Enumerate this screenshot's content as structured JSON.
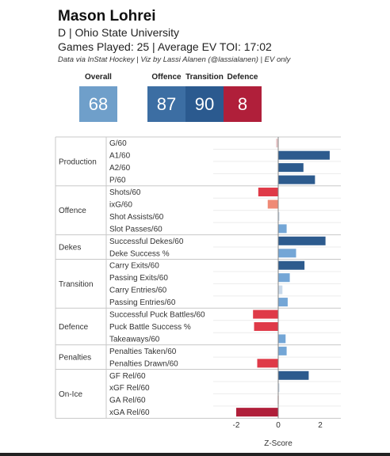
{
  "header": {
    "name": "Mason Lohrei",
    "position_school": "D | Ohio State University",
    "games_toi": "Games Played: 25 | Average EV TOI: 17:02",
    "credit": "Data via InStat Hockey | Viz by Lassi Alanen (@lassialanen) | EV only"
  },
  "scores": {
    "overall": {
      "label": "Overall",
      "value": "68",
      "color": "#6f9fca"
    },
    "offence": {
      "label": "Offence",
      "value": "87",
      "color": "#3c6ea3"
    },
    "transition": {
      "label": "Transition",
      "value": "90",
      "color": "#2b5a8f"
    },
    "defence": {
      "label": "Defence",
      "value": "8",
      "color": "#b01f3a"
    }
  },
  "chart_data": {
    "type": "bar",
    "orientation": "horizontal",
    "xlabel": "Z-Score",
    "xlim": [
      -2.3,
      2.7
    ],
    "xticks": [
      -2,
      0,
      2
    ],
    "groups": [
      {
        "name": "Production",
        "metrics": [
          {
            "label": "G/60",
            "value": -0.1
          },
          {
            "label": "A1/60",
            "value": 2.45
          },
          {
            "label": "A2/60",
            "value": 1.2
          },
          {
            "label": "P/60",
            "value": 1.75
          }
        ]
      },
      {
        "name": "Offence",
        "metrics": [
          {
            "label": "Shots/60",
            "value": -0.95
          },
          {
            "label": "ixG/60",
            "value": -0.5
          },
          {
            "label": "Shot Assists/60",
            "value": 0.0
          },
          {
            "label": "Slot Passes/60",
            "value": 0.4
          }
        ]
      },
      {
        "name": "Dekes",
        "metrics": [
          {
            "label": "Successful Dekes/60",
            "value": 2.25
          },
          {
            "label": "Deke Success %",
            "value": 0.85
          }
        ]
      },
      {
        "name": "Transition",
        "metrics": [
          {
            "label": "Carry Exits/60",
            "value": 1.25
          },
          {
            "label": "Passing Exits/60",
            "value": 0.55
          },
          {
            "label": "Carry Entries/60",
            "value": 0.2
          },
          {
            "label": "Passing Entries/60",
            "value": 0.45
          }
        ]
      },
      {
        "name": "Defence",
        "metrics": [
          {
            "label": "Successful Puck Battles/60",
            "value": -1.2
          },
          {
            "label": "Puck Battle Success %",
            "value": -1.15
          },
          {
            "label": "Takeaways/60",
            "value": 0.35
          }
        ]
      },
      {
        "name": "Penalties",
        "metrics": [
          {
            "label": "Penalties Taken/60",
            "value": 0.4
          },
          {
            "label": "Penalties Drawn/60",
            "value": -1.0
          }
        ]
      },
      {
        "name": "On-Ice",
        "metrics": [
          {
            "label": "GF Rel/60",
            "value": 1.45
          },
          {
            "label": "xGF Rel/60",
            "value": 0.05
          },
          {
            "label": "GA Rel/60",
            "value": -0.03
          },
          {
            "label": "xGA Rel/60",
            "value": -2.0
          }
        ]
      }
    ]
  }
}
